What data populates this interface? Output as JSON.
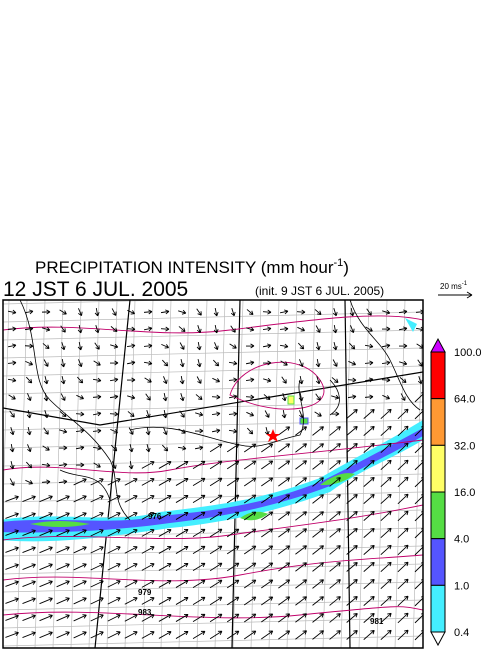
{
  "title": {
    "main": "PRECIPITATION INTENSITY (mm hour",
    "sup": "-1",
    "close": ")"
  },
  "time": "12 JST 6 JUL. 2005",
  "init": "(init. 9 JST 6 JUL. 2005)",
  "wind_scale": {
    "text": "20 ms",
    "sup": "-1"
  },
  "isobar_labels": [
    "976",
    "979",
    "983",
    "981"
  ],
  "colorbar": {
    "labels": [
      "100.0",
      "64.0",
      "32.0",
      "16.0",
      "4.0",
      "1.0",
      "0.4"
    ],
    "colors": [
      "#cc00ff",
      "#ff0000",
      "#ff9933",
      "#ffff66",
      "#55dd44",
      "#5555ff",
      "#44eeff",
      "#ffffff"
    ]
  }
}
